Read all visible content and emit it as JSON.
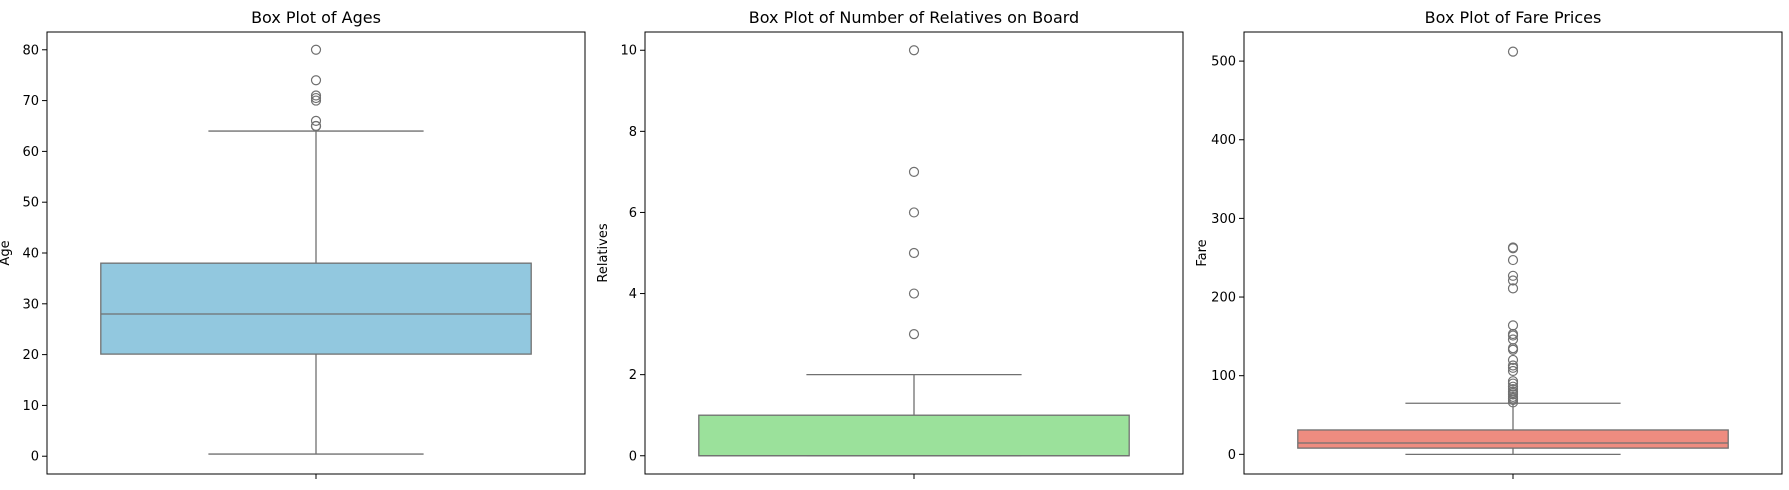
{
  "chart_data": [
    {
      "type": "box",
      "title": "Box Plot of Ages",
      "xlabel": "",
      "ylabel": "Age",
      "ylim": [
        -3.5,
        83.5
      ],
      "yticks": [
        0,
        10,
        20,
        30,
        40,
        50,
        60,
        70,
        80
      ],
      "color": "#92c8df",
      "box": {
        "whisker_low": 0.42,
        "q1": 20.1,
        "median": 28.0,
        "q3": 38.0,
        "whisker_high": 64.0
      },
      "outliers": [
        65,
        65,
        66,
        70,
        70.5,
        71,
        74,
        80
      ]
    },
    {
      "type": "box",
      "title": "Box Plot of Number of Relatives on Board",
      "xlabel": "",
      "ylabel": "Relatives",
      "ylim": [
        -0.45,
        10.45
      ],
      "yticks": [
        0,
        2,
        4,
        6,
        8,
        10
      ],
      "color": "#9be19b",
      "box": {
        "whisker_low": 0,
        "q1": 0,
        "median": 0,
        "q3": 1,
        "whisker_high": 2
      },
      "outliers": [
        3,
        4,
        5,
        6,
        7,
        10
      ]
    },
    {
      "type": "box",
      "title": "Box Plot of Fare Prices",
      "xlabel": "",
      "ylabel": "Fare",
      "ylim": [
        -25,
        537
      ],
      "yticks": [
        0,
        100,
        200,
        300,
        400,
        500
      ],
      "color": "#ee8c80",
      "box": {
        "whisker_low": 0,
        "q1": 7.9,
        "median": 14.45,
        "q3": 31.0,
        "whisker_high": 65.0
      },
      "outliers": [
        66,
        69,
        71,
        73,
        76,
        78,
        80,
        83,
        86,
        90,
        93,
        106,
        110,
        113,
        120,
        133,
        135,
        146,
        151,
        153,
        164,
        211,
        221,
        227,
        247,
        262,
        263,
        512
      ]
    }
  ]
}
